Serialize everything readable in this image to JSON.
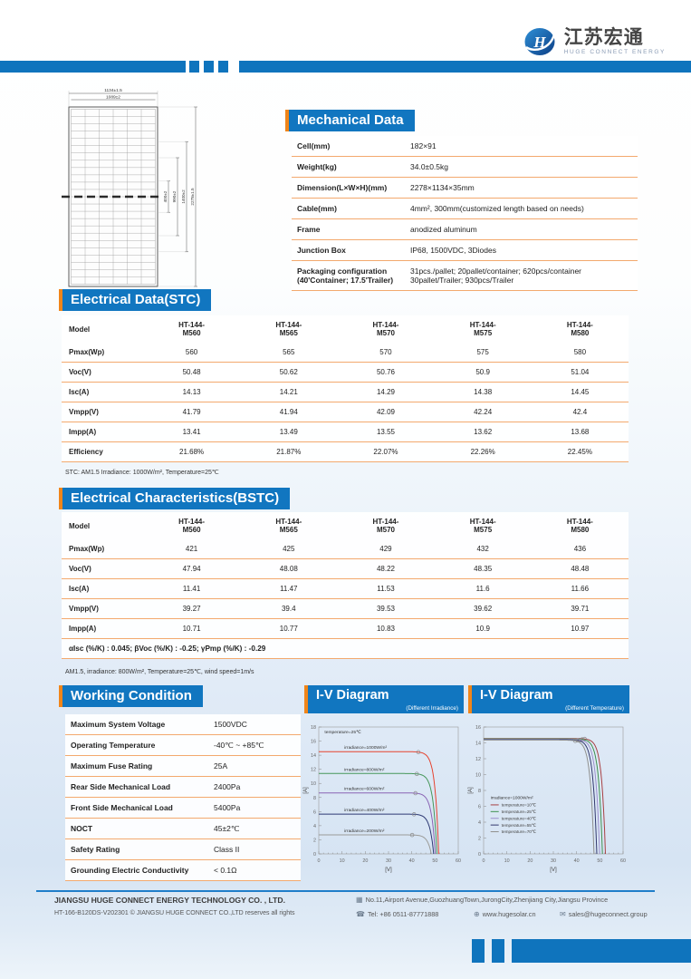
{
  "header": {
    "logo_cn": "江苏宏通",
    "logo_en": "HUGE CONNECT ENERGY"
  },
  "drawing": {
    "dim_top1": "1134±1.5",
    "dim_top2": "1089±2",
    "dims_right": [
      "400±2",
      "990±2",
      "1400±2",
      "2278±1.5"
    ]
  },
  "mechanical": {
    "title": "Mechanical Data",
    "rows": [
      {
        "label": "Cell(mm)",
        "value": "182×91"
      },
      {
        "label": "Weight(kg)",
        "value": "34.0±0.5kg"
      },
      {
        "label": "Dimension(L×W×H)(mm)",
        "value": "2278×1134×35mm"
      },
      {
        "label": "Cable(mm)",
        "value": "4mm²,  300mm(customized length based on needs)"
      },
      {
        "label": "Frame",
        "value": "anodized aluminum"
      },
      {
        "label": "Junction Box",
        "value": "IP68,  1500VDC,  3Diodes"
      },
      {
        "label": "Packaging configuration\n(40'Container;  17.5'Trailer)",
        "value": "31pcs./pallet;  20pallet/container;  620pcs/container\n30pallet/Trailer;  930pcs/Trailer"
      }
    ]
  },
  "stc": {
    "title": "Electrical Data(STC)",
    "col_header": "Model",
    "models": [
      "HT-144-\nM560",
      "HT-144-\nM565",
      "HT-144-\nM570",
      "HT-144-\nM575",
      "HT-144-\nM580"
    ],
    "rows": [
      {
        "label": "Pmax(Wp)",
        "values": [
          "560",
          "565",
          "570",
          "575",
          "580"
        ]
      },
      {
        "label": "Voc(V)",
        "values": [
          "50.48",
          "50.62",
          "50.76",
          "50.9",
          "51.04"
        ]
      },
      {
        "label": "Isc(A)",
        "values": [
          "14.13",
          "14.21",
          "14.29",
          "14.38",
          "14.45"
        ]
      },
      {
        "label": "Vmpp(V)",
        "values": [
          "41.79",
          "41.94",
          "42.09",
          "42.24",
          "42.4"
        ]
      },
      {
        "label": "Impp(A)",
        "values": [
          "13.41",
          "13.49",
          "13.55",
          "13.62",
          "13.68"
        ]
      },
      {
        "label": "Efficiency",
        "values": [
          "21.68%",
          "21.87%",
          "22.07%",
          "22.26%",
          "22.45%"
        ]
      }
    ],
    "footnote": "STC: AM1.5   Irradiance: 1000W/m², Temperature=25℃"
  },
  "bstc": {
    "title": "Electrical Characteristics(BSTC)",
    "col_header": "Model",
    "models": [
      "HT-144-\nM560",
      "HT-144-\nM565",
      "HT-144-\nM570",
      "HT-144-\nM575",
      "HT-144-\nM580"
    ],
    "rows": [
      {
        "label": "Pmax(Wp)",
        "values": [
          "421",
          "425",
          "429",
          "432",
          "436"
        ]
      },
      {
        "label": "Voc(V)",
        "values": [
          "47.94",
          "48.08",
          "48.22",
          "48.35",
          "48.48"
        ]
      },
      {
        "label": "Isc(A)",
        "values": [
          "11.41",
          "11.47",
          "11.53",
          "11.6",
          "11.66"
        ]
      },
      {
        "label": "Vmpp(V)",
        "values": [
          "39.27",
          "39.4",
          "39.53",
          "39.62",
          "39.71"
        ]
      },
      {
        "label": "Impp(A)",
        "values": [
          "10.71",
          "10.77",
          "10.83",
          "10.9",
          "10.97"
        ]
      }
    ],
    "coefficients": "αIsc (%/K) : 0.045;  βVoc (%/K) : -0.25;  γPmp (%/K) : -0.29",
    "footnote": "AM1.5, irradiance: 800W/m²,  Temperature=25℃, wind speed=1m/s"
  },
  "working": {
    "title": "Working Condition",
    "rows": [
      {
        "label": "Maximum System Voltage",
        "value": "1500VDC"
      },
      {
        "label": "Operating Temperature",
        "value": "-40℃ ~ +85℃"
      },
      {
        "label": "Maximum Fuse Rating",
        "value": "25A"
      },
      {
        "label": "Rear Side Mechanical Load",
        "value": "2400Pa"
      },
      {
        "label": "Front Side Mechanical Load",
        "value": "5400Pa"
      },
      {
        "label": "NOCT",
        "value": "45±2℃"
      },
      {
        "label": "Safety Rating",
        "value": "Class II"
      },
      {
        "label": "Grounding Electric Conductivity",
        "value": "< 0.1Ω"
      }
    ]
  },
  "chart_data": [
    {
      "type": "line",
      "title": "I-V Diagram",
      "subtitle": "(Different Irradiance)",
      "xlabel": "[V]",
      "ylabel": "[A]",
      "xlim": [
        0,
        60
      ],
      "ylim": [
        0,
        18
      ],
      "xtick_step": 10,
      "ytick_step": 2,
      "grid": false,
      "annotation": "temperature=25℃",
      "legend_position": "curve-labels",
      "series": [
        {
          "name": "irradiance=1000W/m²",
          "color": "#e6422e",
          "isc": 14.5,
          "voc": 51.6
        },
        {
          "name": "irradiance=800W/m²",
          "color": "#46975a",
          "isc": 11.4,
          "voc": 50.8
        },
        {
          "name": "irradiance=600W/m²",
          "color": "#8a64b4",
          "isc": 8.65,
          "voc": 50.1
        },
        {
          "name": "irradiance=400W/m²",
          "color": "#2e3a74",
          "isc": 5.65,
          "voc": 49.4
        },
        {
          "name": "irradiance=200W/m²",
          "color": "#9b9b98",
          "isc": 2.7,
          "voc": 48.4
        }
      ]
    },
    {
      "type": "line",
      "title": "I-V Diagram",
      "subtitle": "(Different Temperature)",
      "xlabel": "[V]",
      "ylabel": "[A]",
      "xlim": [
        0,
        60
      ],
      "ylim": [
        0,
        16
      ],
      "xtick_step": 10,
      "ytick_step": 2,
      "grid": false,
      "legend_title": "irradiance=1000W/m²",
      "legend_position": "left-middle",
      "series": [
        {
          "name": "temperature=10℃",
          "color": "#a84043",
          "isc": 14.55,
          "voc": 52.4
        },
        {
          "name": "temperature=25℃",
          "color": "#3f9150",
          "isc": 14.5,
          "voc": 51.1
        },
        {
          "name": "temperature=40℃",
          "color": "#9c90cc",
          "isc": 14.45,
          "voc": 49.9
        },
        {
          "name": "temperature=55℃",
          "color": "#32386e",
          "isc": 14.4,
          "voc": 48.7
        },
        {
          "name": "temperature=70℃",
          "color": "#90908e",
          "isc": 14.35,
          "voc": 47.5
        }
      ]
    }
  ],
  "footer": {
    "company": "JIANGSU HUGE CONNECT ENERGY TECHNOLOGY CO. , LTD.",
    "doc_code": "HT-166-B120DS-V202301  © JIANGSU HUGE CONNECT CO.,LTD reserves all rights",
    "address": "No.11,Airport Avenue,GuozhuangTown,JurongCity,Zhenjiang City,Jiangsu Province",
    "tel": "Tel: +86 0511-87771888",
    "website": "www.hugesolar.cn",
    "email": "sales@hugeconnect.group"
  },
  "colors": {
    "brand_blue": "#1176c0",
    "band_blue": "#0f74bd",
    "accent_orange": "#f08519",
    "separator_orange": "#f3a96e"
  }
}
